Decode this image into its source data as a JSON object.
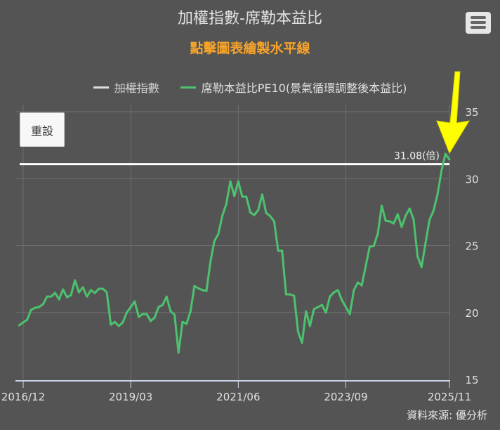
{
  "header": {
    "title": "加權指數-席勒本益比",
    "subtitle": "點擊圖表繪製水平線",
    "menu_icon": "hamburger-menu-icon"
  },
  "legend": [
    {
      "label": "加權指數",
      "color": "#dddddd",
      "hidden": true
    },
    {
      "label": "席勒本益比PE10(景氣循環調整後本益比)",
      "color": "#4cc26e",
      "hidden": false
    }
  ],
  "reset_button": {
    "label": "重設"
  },
  "credit": "資料來源: 優分析",
  "chart_data": {
    "type": "line",
    "title": "加權指數-席勒本益比",
    "xlabel": "",
    "ylabel": "",
    "ylim": [
      15,
      35
    ],
    "y_ticks": [
      "15",
      "20",
      "25",
      "30",
      "35"
    ],
    "y_axis_position": "right",
    "x_ticks": [
      "2016/12",
      "2019/03",
      "2021/06",
      "2023/09",
      "2025/11"
    ],
    "grid": true,
    "legend_position": "top",
    "horizontal_line": {
      "value": 31.08,
      "label": "31.08(倍)",
      "color": "#ffffff"
    },
    "annotation_arrow": {
      "color": "#ffff00",
      "points_to": "2025/11"
    },
    "series": [
      {
        "name": "席勒本益比PE10(景氣循環調整後本益比)",
        "color": "#4cc26e",
        "x": [
          "2016-11",
          "2016-12",
          "2017-01",
          "2017-02",
          "2017-03",
          "2017-04",
          "2017-05",
          "2017-06",
          "2017-07",
          "2017-08",
          "2017-09",
          "2017-10",
          "2017-11",
          "2017-12",
          "2018-01",
          "2018-02",
          "2018-03",
          "2018-04",
          "2018-05",
          "2018-06",
          "2018-07",
          "2018-08",
          "2018-09",
          "2018-10",
          "2018-11",
          "2018-12",
          "2019-01",
          "2019-02",
          "2019-03",
          "2019-04",
          "2019-05",
          "2019-06",
          "2019-07",
          "2019-08",
          "2019-09",
          "2019-10",
          "2019-11",
          "2019-12",
          "2020-01",
          "2020-02",
          "2020-03",
          "2020-04",
          "2020-05",
          "2020-06",
          "2020-07",
          "2020-08",
          "2020-09",
          "2020-10",
          "2020-11",
          "2020-12",
          "2021-01",
          "2021-02",
          "2021-03",
          "2021-04",
          "2021-05",
          "2021-06",
          "2021-07",
          "2021-08",
          "2021-09",
          "2021-10",
          "2021-11",
          "2021-12",
          "2022-01",
          "2022-02",
          "2022-03",
          "2022-04",
          "2022-05",
          "2022-06",
          "2022-07",
          "2022-08",
          "2022-09",
          "2022-10",
          "2022-11",
          "2022-12",
          "2023-01",
          "2023-02",
          "2023-03",
          "2023-04",
          "2023-05",
          "2023-06",
          "2023-07",
          "2023-08",
          "2023-09",
          "2023-10",
          "2023-11",
          "2023-12",
          "2024-01",
          "2024-02",
          "2024-03",
          "2024-04",
          "2024-05",
          "2024-06",
          "2024-07",
          "2024-08",
          "2024-09",
          "2024-10",
          "2024-11",
          "2024-12",
          "2025-01",
          "2025-02",
          "2025-03",
          "2025-04",
          "2025-05",
          "2025-06",
          "2025-07",
          "2025-08",
          "2025-09",
          "2025-10",
          "2025-11"
        ],
        "values": [
          19.04,
          19.25,
          19.46,
          20.2,
          20.35,
          20.41,
          20.62,
          21.19,
          21.19,
          21.46,
          20.98,
          21.72,
          21.14,
          21.3,
          22.4,
          21.51,
          21.88,
          21.19,
          21.67,
          21.46,
          21.77,
          21.77,
          21.51,
          19.09,
          19.3,
          18.99,
          19.25,
          19.99,
          20.4,
          20.83,
          19.67,
          19.88,
          19.88,
          19.36,
          19.62,
          20.41,
          20.56,
          21.19,
          20.09,
          19.83,
          17.0,
          19.3,
          19.15,
          20.09,
          21.98,
          21.8,
          21.67,
          21.61,
          23.77,
          25.34,
          25.87,
          27.23,
          28.12,
          29.8,
          28.7,
          29.8,
          28.65,
          28.65,
          27.49,
          27.28,
          27.65,
          28.81,
          27.44,
          27.2,
          26.81,
          24.61,
          24.61,
          21.35,
          21.35,
          21.25,
          18.57,
          17.73,
          20.09,
          18.99,
          20.25,
          20.4,
          20.56,
          19.99,
          21.19,
          21.5,
          21.67,
          20.93,
          20.4,
          19.88,
          21.67,
          22.24,
          22.03,
          23.5,
          24.92,
          24.97,
          25.87,
          27.97,
          26.86,
          26.81,
          26.65,
          27.34,
          26.39,
          27.23,
          27.76,
          26.97,
          24.19,
          23.4,
          25.2,
          26.92,
          27.6,
          28.81,
          30.59,
          31.85,
          31.43
        ]
      }
    ]
  }
}
